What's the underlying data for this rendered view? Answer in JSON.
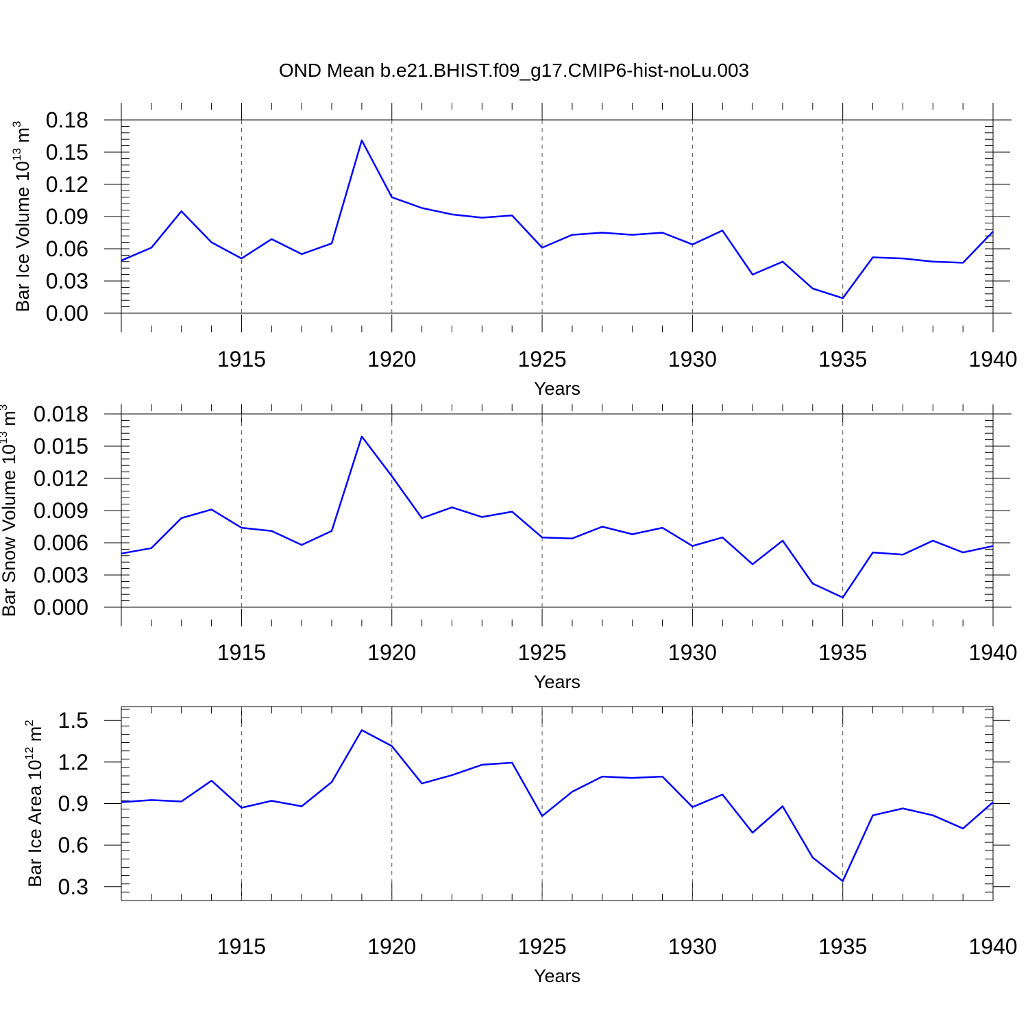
{
  "title": "OND Mean b.e21.BHIST.f09_g17.CMIP6-hist-noLu.003",
  "colors": {
    "line": "#0000ff",
    "axis": "#000000",
    "grid": "#555555"
  },
  "chart_data": [
    {
      "type": "line",
      "ylabel": {
        "main": "Bar Ice Volume 10",
        "exp": "13",
        "unit": " m",
        "unit_exp": "3"
      },
      "xlabel": "Years",
      "xlim": [
        1911,
        1940
      ],
      "ylim": [
        0.0,
        0.18
      ],
      "yticks": [
        "0.00",
        "0.03",
        "0.06",
        "0.09",
        "0.12",
        "0.15",
        "0.18"
      ],
      "xticks": [
        "1915",
        "1920",
        "1925",
        "1930",
        "1935",
        "1940"
      ],
      "grid_x": true,
      "series": [
        {
          "name": "Bar Ice Volume",
          "x": [
            1911,
            1912,
            1913,
            1914,
            1915,
            1916,
            1917,
            1918,
            1919,
            1920,
            1921,
            1922,
            1923,
            1924,
            1925,
            1926,
            1927,
            1928,
            1929,
            1930,
            1931,
            1932,
            1933,
            1934,
            1935,
            1936,
            1937,
            1938,
            1939,
            1940
          ],
          "values": [
            0.049,
            0.061,
            0.095,
            0.066,
            0.051,
            0.069,
            0.055,
            0.065,
            0.161,
            0.108,
            0.098,
            0.092,
            0.089,
            0.091,
            0.061,
            0.073,
            0.075,
            0.073,
            0.075,
            0.064,
            0.077,
            0.036,
            0.048,
            0.023,
            0.014,
            0.052,
            0.051,
            0.048,
            0.047,
            0.076
          ]
        }
      ]
    },
    {
      "type": "line",
      "ylabel": {
        "main": "Bar Snow Volume 10",
        "exp": "13",
        "unit": " m",
        "unit_exp": "3"
      },
      "xlabel": "Years",
      "xlim": [
        1911,
        1940
      ],
      "ylim": [
        0.0,
        0.018
      ],
      "yticks": [
        "0.000",
        "0.003",
        "0.006",
        "0.009",
        "0.012",
        "0.015",
        "0.018"
      ],
      "xticks": [
        "1915",
        "1920",
        "1925",
        "1930",
        "1935",
        "1940"
      ],
      "grid_x": true,
      "series": [
        {
          "name": "Bar Snow Volume",
          "x": [
            1911,
            1912,
            1913,
            1914,
            1915,
            1916,
            1917,
            1918,
            1919,
            1920,
            1921,
            1922,
            1923,
            1924,
            1925,
            1926,
            1927,
            1928,
            1929,
            1930,
            1931,
            1932,
            1933,
            1934,
            1935,
            1936,
            1937,
            1938,
            1939,
            1940
          ],
          "values": [
            0.005,
            0.0055,
            0.0083,
            0.0091,
            0.0074,
            0.0071,
            0.0058,
            0.0071,
            0.0159,
            0.0122,
            0.0083,
            0.0093,
            0.0084,
            0.0089,
            0.0065,
            0.0064,
            0.0075,
            0.0068,
            0.0074,
            0.0057,
            0.0065,
            0.004,
            0.0062,
            0.0022,
            0.0009,
            0.0051,
            0.0049,
            0.0062,
            0.0051,
            0.0057
          ]
        }
      ]
    },
    {
      "type": "line",
      "ylabel": {
        "main": "Bar Ice Area 10",
        "exp": "12",
        "unit": " m",
        "unit_exp": "2"
      },
      "xlabel": "Years",
      "xlim": [
        1911,
        1940
      ],
      "ylim": [
        0.2,
        1.6
      ],
      "yticks": [
        "0.3",
        "0.6",
        "0.9",
        "1.2",
        "1.5"
      ],
      "ytick_values": [
        0.3,
        0.6,
        0.9,
        1.2,
        1.5
      ],
      "xticks": [
        "1915",
        "1920",
        "1925",
        "1930",
        "1935",
        "1940"
      ],
      "grid_x": true,
      "series": [
        {
          "name": "Bar Ice Area",
          "x": [
            1911,
            1912,
            1913,
            1914,
            1915,
            1916,
            1917,
            1918,
            1919,
            1920,
            1921,
            1922,
            1923,
            1924,
            1925,
            1926,
            1927,
            1928,
            1929,
            1930,
            1931,
            1932,
            1933,
            1934,
            1935,
            1936,
            1937,
            1938,
            1939,
            1940
          ],
          "values": [
            0.91,
            0.925,
            0.915,
            1.065,
            0.87,
            0.92,
            0.88,
            1.055,
            1.43,
            1.315,
            1.045,
            1.105,
            1.18,
            1.195,
            0.81,
            0.985,
            1.095,
            1.085,
            1.095,
            0.875,
            0.965,
            0.69,
            0.88,
            0.51,
            0.34,
            0.815,
            0.865,
            0.815,
            0.72,
            0.91
          ]
        }
      ]
    }
  ]
}
